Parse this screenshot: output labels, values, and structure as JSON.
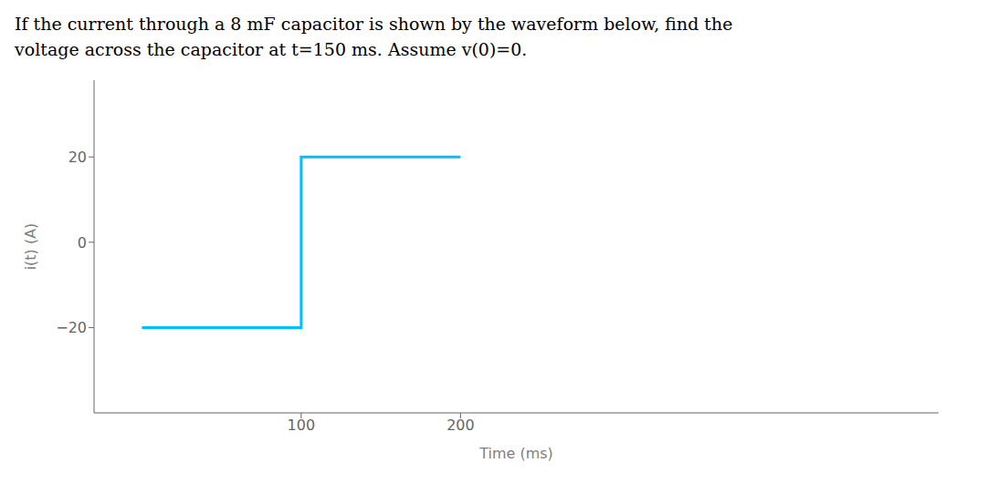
{
  "chart_data": {
    "type": "line",
    "title": "If the current through a 8 mF capacitor is shown by the waveform below, find the",
    "subtitle": "voltage across the capacitor at t=150 ms. Assume v(0)=0.",
    "x_label": "Time (ms)",
    "y_label": "i(t) (A)",
    "x": [
      0,
      100,
      100,
      200
    ],
    "values": [
      -20,
      -20,
      20,
      20
    ],
    "color": "#00BFFF",
    "xlim": [
      -30,
      500
    ],
    "ylim": [
      -40,
      38
    ],
    "xticks": [
      100,
      200
    ],
    "yticks": [
      20,
      0,
      {
        "value": -20,
        "label": "−20"
      }
    ],
    "grid": false
  }
}
